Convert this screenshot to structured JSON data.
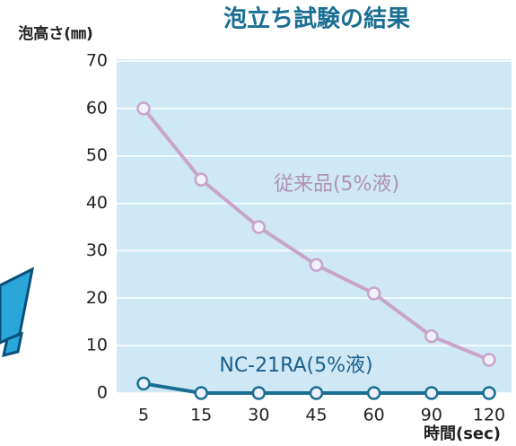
{
  "chart_data": {
    "type": "line",
    "title": "泡立ち試験の結果",
    "y_label": "泡高さ(㎜)",
    "x_label": "時間(sec)",
    "categories": [
      "5",
      "15",
      "30",
      "45",
      "60",
      "90",
      "120"
    ],
    "series": [
      {
        "name": "従来品(5%液)",
        "color": "#c8a4cc",
        "values": [
          60,
          45,
          35,
          27,
          21,
          12,
          7
        ]
      },
      {
        "name": "NC-21RA(5%液)",
        "color": "#1b6e93",
        "values": [
          2,
          0,
          0,
          0,
          0,
          0,
          0
        ]
      }
    ],
    "ylim": [
      0,
      70
    ],
    "yticks": [
      0,
      10,
      20,
      30,
      40,
      50,
      60,
      70
    ],
    "grid": true
  }
}
